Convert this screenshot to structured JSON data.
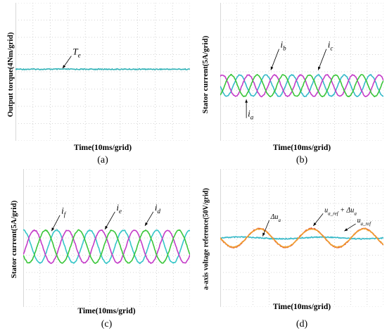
{
  "panels": [
    {
      "caption": "(a)",
      "ylabel": "Output torque(4Nm/grid)",
      "xlabel": "Time(10ms/grid)",
      "chart_data": {
        "type": "line",
        "xlabel": "Time(10ms/grid)",
        "ylabel": "Output torque(4Nm/grid)",
        "grid": true,
        "divisions": {
          "x": 10,
          "y": 8
        },
        "series": [
          {
            "name": "T_e",
            "color": "#33b3b8",
            "waveform": "constant",
            "level_div": 3.85,
            "noise_div": 0.03
          }
        ],
        "annotations": [
          {
            "text": "T",
            "sub": "e"
          }
        ]
      }
    },
    {
      "caption": "(b)",
      "ylabel": "Stator current(5A/grid)",
      "xlabel": "Time(10ms/grid)",
      "chart_data": {
        "type": "line",
        "xlabel": "Time(10ms/grid)",
        "ylabel": "Stator current(5A/grid)",
        "grid": true,
        "divisions": {
          "x": 10,
          "y": 8
        },
        "series": [
          {
            "name": "i_a",
            "color": "#35b9c8",
            "waveform": "sine",
            "offset_div": 4.8,
            "amplitude_div": 0.62,
            "period_div": 1.6,
            "phase_deg": 180
          },
          {
            "name": "i_b",
            "color": "#c43cc8",
            "waveform": "sine",
            "offset_div": 4.8,
            "amplitude_div": 0.62,
            "period_div": 1.6,
            "phase_deg": 60
          },
          {
            "name": "i_c",
            "color": "#3ac63a",
            "waveform": "sine",
            "offset_div": 4.8,
            "amplitude_div": 0.62,
            "period_div": 1.6,
            "phase_deg": 300
          }
        ],
        "annotations": [
          {
            "text": "i",
            "sub": "a"
          },
          {
            "text": "i",
            "sub": "b"
          },
          {
            "text": "i",
            "sub": "c"
          }
        ]
      }
    },
    {
      "caption": "(c)",
      "ylabel": "Stator current(5A/grid)",
      "xlabel": "Time(10ms/grid)",
      "chart_data": {
        "type": "line",
        "xlabel": "Time(10ms/grid)",
        "ylabel": "Stator current(5A/grid)",
        "grid": true,
        "divisions": {
          "x": 10,
          "y": 8
        },
        "series": [
          {
            "name": "i_d",
            "color": "#35c6c8",
            "waveform": "sine",
            "offset_div": 4.5,
            "amplitude_div": 0.95,
            "period_div": 2.0,
            "phase_deg": 90
          },
          {
            "name": "i_e",
            "color": "#c43cc8",
            "waveform": "sine",
            "offset_div": 4.5,
            "amplitude_div": 0.95,
            "period_div": 2.0,
            "phase_deg": 330
          },
          {
            "name": "i_f",
            "color": "#3ac63a",
            "waveform": "sine",
            "offset_div": 4.5,
            "amplitude_div": 0.95,
            "period_div": 2.0,
            "phase_deg": 210
          }
        ],
        "annotations": [
          {
            "text": "i",
            "sub": "f"
          },
          {
            "text": "i",
            "sub": "e"
          },
          {
            "text": "i",
            "sub": "d"
          }
        ]
      }
    },
    {
      "caption": "(d)",
      "ylabel": "a-axis voltage reference(50V/grid)",
      "xlabel": "Time(10ms/grid)",
      "chart_data": {
        "type": "line",
        "xlabel": "Time(10ms/grid)",
        "ylabel": "a-axis voltage reference(50V/grid)",
        "grid": true,
        "divisions": {
          "x": 10,
          "y": 8
        },
        "series": [
          {
            "name": "Δu_a",
            "color": "#35b9c8",
            "waveform": "sine",
            "offset_div": 4.0,
            "amplitude_div": 0.05,
            "period_div": 5.0,
            "phase_deg": 0
          },
          {
            "name": "u_a_ref + Δu_a",
            "color": "#e0483a",
            "waveform": "sine",
            "offset_div": 4.0,
            "amplitude_div": 0.55,
            "period_div": 3.2,
            "phase_deg": 180
          },
          {
            "name": "u_a_ref",
            "color": "#f0a030",
            "waveform": "sine",
            "offset_div": 4.0,
            "amplitude_div": 0.53,
            "period_div": 3.2,
            "phase_deg": 180
          }
        ],
        "annotations": [
          {
            "text": "Δu",
            "sub": "a"
          },
          {
            "text": "u",
            "sub": "a_ref",
            "extra": " + Δu",
            "extra_sub": "a"
          },
          {
            "text": "u",
            "sub": "a_ref"
          }
        ]
      }
    }
  ]
}
